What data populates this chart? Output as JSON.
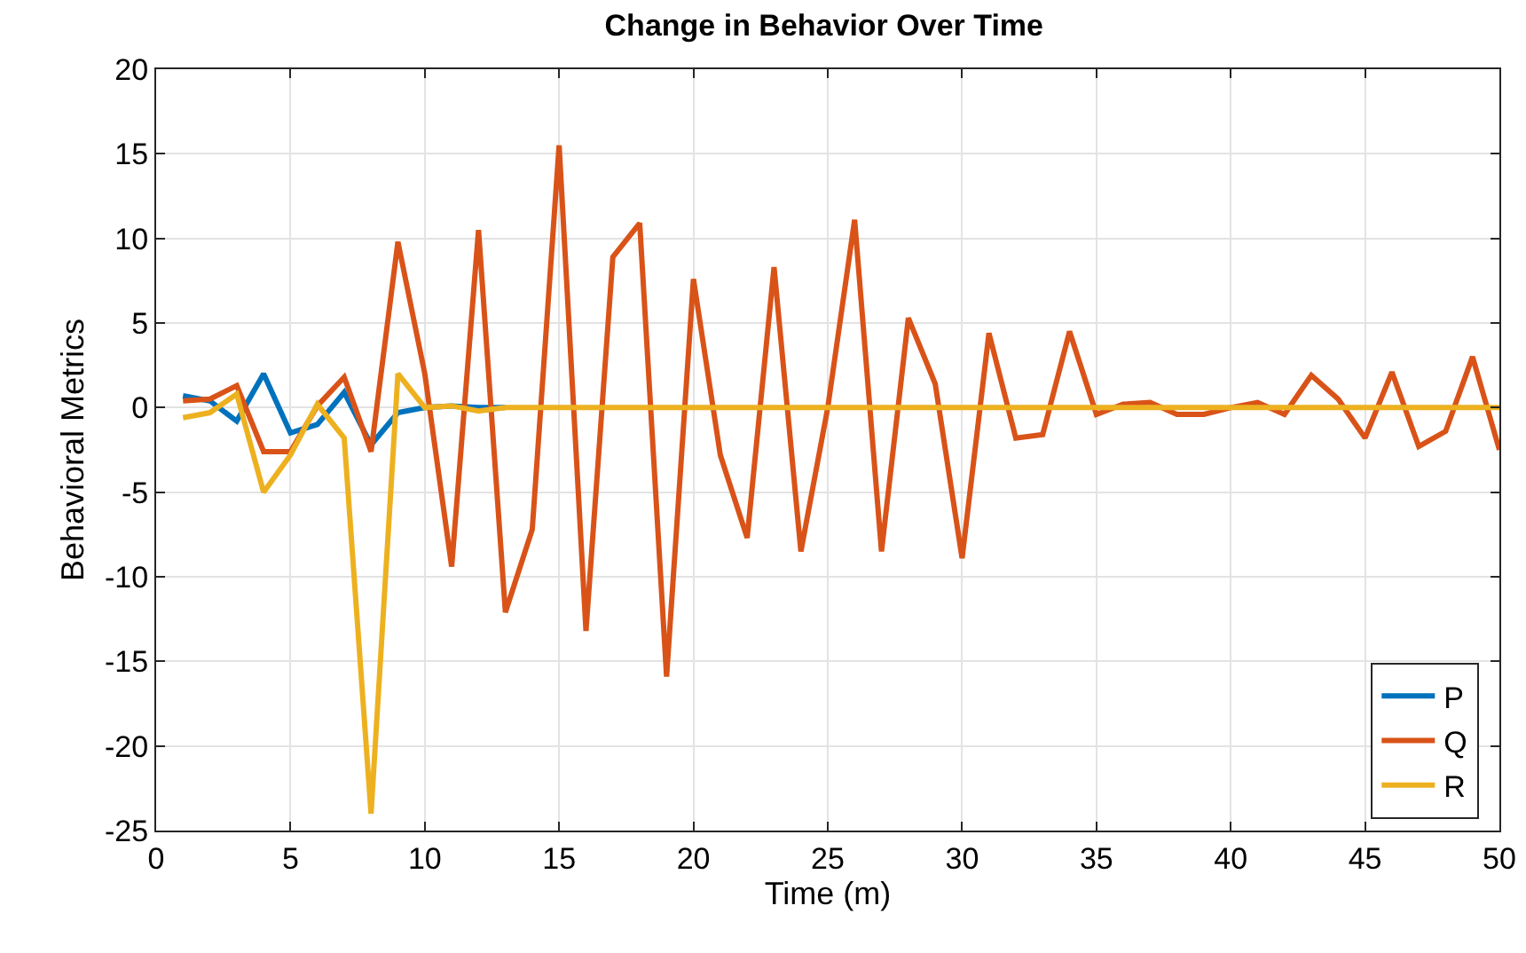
{
  "chart_data": {
    "type": "line",
    "title": "Change in Behavior Over Time",
    "xlabel": "Time (m)",
    "ylabel": "Behavioral Metrics",
    "x": [
      1,
      2,
      3,
      4,
      5,
      6,
      7,
      8,
      9,
      10,
      11,
      12,
      13,
      14,
      15,
      16,
      17,
      18,
      19,
      20,
      21,
      22,
      23,
      24,
      25,
      26,
      27,
      28,
      29,
      30,
      31,
      32,
      33,
      34,
      35,
      36,
      37,
      38,
      39,
      40,
      41,
      42,
      43,
      44,
      45,
      46,
      47,
      48,
      49,
      50
    ],
    "series": [
      {
        "name": "P",
        "color": "#0072bd",
        "values": [
          0.7,
          0.4,
          -0.8,
          2.0,
          -1.5,
          -1.0,
          0.9,
          -2.2,
          -0.3,
          0,
          0.1,
          0,
          0,
          null,
          null,
          null,
          null,
          null,
          null,
          null,
          null,
          null,
          null,
          null,
          null,
          null,
          null,
          null,
          null,
          null,
          null,
          null,
          null,
          null,
          null,
          null,
          null,
          null,
          null,
          null,
          null,
          null,
          null,
          null,
          null,
          null,
          null,
          null,
          null,
          null
        ]
      },
      {
        "name": "Q",
        "color": "#d95319",
        "values": [
          0.4,
          0.5,
          1.3,
          -2.6,
          -2.6,
          0.1,
          1.8,
          -2.6,
          9.8,
          2.0,
          -9.4,
          10.5,
          -12.1,
          -7.2,
          15.5,
          -13.2,
          8.9,
          10.9,
          -15.9,
          7.6,
          -2.8,
          -7.7,
          8.3,
          -8.5,
          0,
          11.1,
          -8.5,
          5.3,
          1.4,
          -8.9,
          4.4,
          -1.8,
          -1.6,
          4.5,
          -0.4,
          0.2,
          0.3,
          -0.4,
          -0.4,
          0,
          0.3,
          -0.4,
          1.9,
          0.5,
          -1.8,
          2.1,
          -2.3,
          -1.4,
          3.0,
          -2.5
        ]
      },
      {
        "name": "R",
        "color": "#edb120",
        "values": [
          -0.6,
          -0.3,
          0.8,
          -5.0,
          -2.8,
          0.2,
          -1.8,
          -24.0,
          2.0,
          0,
          0.1,
          -0.2,
          0,
          0,
          0,
          0,
          0,
          0,
          0,
          0,
          0,
          0,
          0,
          0,
          0,
          0,
          0,
          0,
          0,
          0,
          0,
          0,
          0,
          0,
          0,
          0,
          0,
          0,
          0,
          0,
          0,
          0,
          0,
          0,
          0,
          0,
          0,
          0,
          0,
          0
        ]
      }
    ],
    "xlim": [
      0,
      50
    ],
    "xticks": [
      0,
      5,
      10,
      15,
      20,
      25,
      30,
      35,
      40,
      45,
      50
    ],
    "ylim": [
      -25,
      20
    ],
    "yticks": [
      -25,
      -20,
      -15,
      -10,
      -5,
      0,
      5,
      10,
      15,
      20
    ],
    "grid": true,
    "legend": "bottom right",
    "line_style": "solid",
    "marker": "none"
  }
}
